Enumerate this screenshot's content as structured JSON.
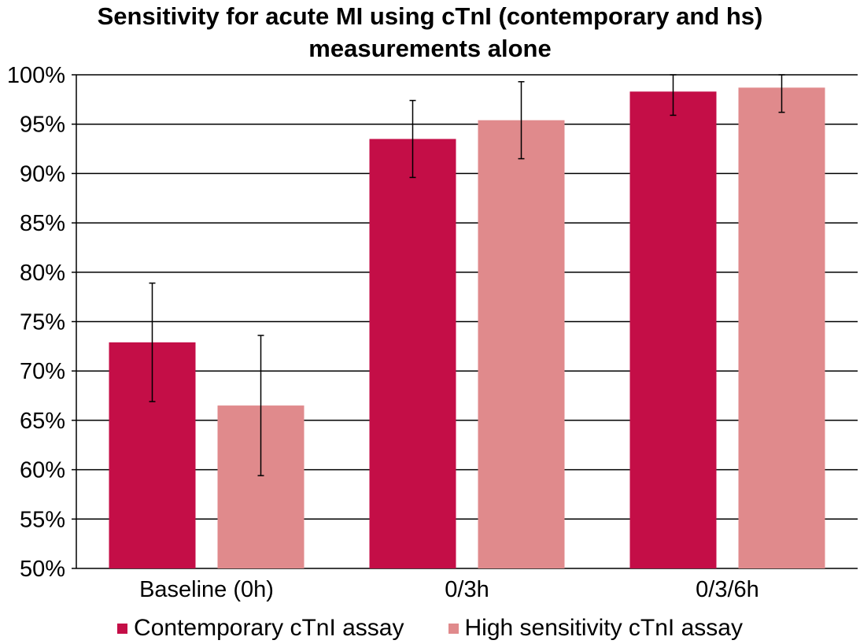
{
  "chart_data": {
    "type": "bar",
    "title_lines": [
      "Sensitivity for acute MI using cTnI (contemporary and hs)",
      "measurements alone"
    ],
    "categories": [
      "Baseline (0h)",
      "0/3h",
      "0/3/6h"
    ],
    "series": [
      {
        "name": "Contemporary cTnI assay",
        "color": "#c40e47",
        "values": [
          72.9,
          93.5,
          98.3
        ],
        "error_low": [
          66.9,
          89.6,
          95.9
        ],
        "error_high": [
          78.9,
          97.4,
          100.0
        ]
      },
      {
        "name": "High sensitivity cTnI assay",
        "color": "#e08a8c",
        "values": [
          66.5,
          95.4,
          98.7
        ],
        "error_low": [
          59.4,
          91.5,
          96.2
        ],
        "error_high": [
          73.6,
          99.3,
          100.0
        ]
      }
    ],
    "y_ticks": [
      "50%",
      "55%",
      "60%",
      "65%",
      "70%",
      "75%",
      "80%",
      "85%",
      "90%",
      "95%",
      "100%"
    ],
    "ylim": [
      50,
      100
    ],
    "ytick_step": 5,
    "y_unit": "%",
    "grid": true,
    "legend_position": "bottom"
  }
}
